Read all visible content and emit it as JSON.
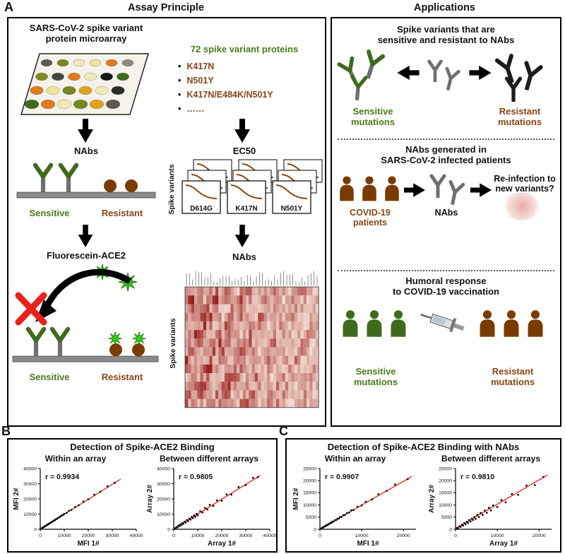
{
  "colors": {
    "green": "#4a7c19",
    "green_dark": "#3f6b1c",
    "brown": "#8b4513",
    "brown_dark": "#7a3b00",
    "gray_ab": "#6f6f6f",
    "black_ab": "#1c1c1c",
    "red": "#e8231c",
    "star_green": "#35c81e",
    "bar_gray": "#8a8a8a",
    "fit_red": "#e03127"
  },
  "panel_a": {
    "label": "A",
    "assay": {
      "title": "Assay Principle",
      "microarray_title_l1": "SARS-CoV-2 spike variant",
      "microarray_title_l2": "protein microarray",
      "microarray_dots": [
        [
          "#5a5a52",
          "#76881f",
          "#f2e9b6",
          "#efe39c",
          "#df7a1e",
          "#8d8d7e"
        ],
        [
          "#7e8d22",
          "#474747",
          "#df7a1e",
          "#f2e9b6",
          "#161616",
          "#3f6b1c"
        ],
        [
          "#df7a1e",
          "#efe39c",
          "#76881f",
          "#dfa31e",
          "#f2e9b6",
          "#2b2b2b"
        ],
        [
          "#3f6b1c",
          "#df7a1e",
          "#f2e9b6",
          "#76881f",
          "#dfa31e",
          "#5a5a52"
        ]
      ],
      "nabs_label": "NAbs",
      "sensitive_label": "Sensitive",
      "resistant_label": "Resistant",
      "fluorescein_label": "Fluorescein-ACE2",
      "sensitive_label2": "Sensitive",
      "resistant_label2": "Resistant",
      "variants_title": "72 spike variant proteins",
      "variant_bullets": [
        "K417N",
        "N501Y",
        "K417N/E484K/N501Y",
        "……"
      ],
      "ec50_label": "EC50",
      "spike_variants_label": "Spike variants",
      "curve_labels": [
        "D614G",
        "K417N",
        "N501Y"
      ],
      "nabs_label2": "NAbs",
      "heatmap_side_label": "Spike variants"
    },
    "applications": {
      "title": "Applications",
      "s1_title_l1": "Spike variants that are",
      "s1_title_l2": "sensitive and resistant to NAbs",
      "s1_sensitive_l1": "Sensitive",
      "s1_sensitive_l2": "mutations",
      "s1_resistant_l1": "Resistant",
      "s1_resistant_l2": "mutations",
      "s2_title_l1": "NAbs generated in",
      "s2_title_l2": "SARS-CoV-2 infected patients",
      "s2_patients_l1": "COVID-19",
      "s2_patients_l2": "patients",
      "s2_nabs_label": "NAbs",
      "s2_question": "Re-infection to new variants?",
      "s3_title_l1": "Humoral response",
      "s3_title_l2": "to COVID-19 vaccination",
      "s3_sensitive_l1": "Sensitive",
      "s3_sensitive_l2": "mutations",
      "s3_resistant_l1": "Resistant",
      "s3_resistant_l2": "mutations"
    }
  },
  "panel_b": {
    "label": "B",
    "title": "Detection of Spike-ACE2 Binding"
  },
  "panel_c": {
    "label": "C",
    "title": "Detection of Spike-ACE2 Binding with NAbs"
  },
  "chart_data": [
    {
      "type": "scatter",
      "panel": "B",
      "subtitle": "Within an array",
      "r_label": "r = 0.9934",
      "xlabel": "MFI 1#",
      "ylabel": "MFI 2#",
      "xlim": [
        0,
        40000
      ],
      "ylim": [
        0,
        40000
      ],
      "xticks": [
        0,
        10000,
        20000,
        30000,
        40000
      ],
      "yticks": [
        0,
        10000,
        20000,
        30000,
        40000
      ],
      "fit_line": [
        [
          0,
          0
        ],
        [
          33500,
          33000
        ]
      ],
      "points": [
        [
          300,
          400
        ],
        [
          600,
          500
        ],
        [
          900,
          1000
        ],
        [
          1200,
          1150
        ],
        [
          1500,
          1600
        ],
        [
          1800,
          1700
        ],
        [
          2100,
          2200
        ],
        [
          2400,
          2350
        ],
        [
          2700,
          2800
        ],
        [
          3000,
          2950
        ],
        [
          3300,
          3400
        ],
        [
          3600,
          3500
        ],
        [
          4000,
          4100
        ],
        [
          4400,
          4300
        ],
        [
          4800,
          4900
        ],
        [
          5200,
          5100
        ],
        [
          5600,
          5750
        ],
        [
          6000,
          5900
        ],
        [
          6500,
          6600
        ],
        [
          7000,
          6900
        ],
        [
          7500,
          7650
        ],
        [
          8000,
          7900
        ],
        [
          8500,
          8600
        ],
        [
          9000,
          9100
        ],
        [
          9500,
          9400
        ],
        [
          10000,
          10200
        ],
        [
          11000,
          10850
        ],
        [
          12000,
          12200
        ],
        [
          13000,
          12800
        ],
        [
          14500,
          14700
        ],
        [
          16000,
          15800
        ],
        [
          18000,
          18300
        ],
        [
          20000,
          19700
        ],
        [
          22500,
          22800
        ],
        [
          25000,
          24700
        ],
        [
          28000,
          28300
        ],
        [
          31000,
          30600
        ]
      ]
    },
    {
      "type": "scatter",
      "panel": "B",
      "subtitle": "Between different arrays",
      "r_label": "r = 0.9805",
      "xlabel": "Array 1#",
      "ylabel": "Array 2#",
      "xlim": [
        0,
        40000
      ],
      "ylim": [
        0,
        40000
      ],
      "xticks": [
        0,
        10000,
        20000,
        30000,
        40000
      ],
      "yticks": [
        0,
        10000,
        20000,
        30000,
        40000
      ],
      "fit_line": [
        [
          0,
          300
        ],
        [
          36000,
          35400
        ]
      ],
      "points": [
        [
          400,
          700
        ],
        [
          800,
          500
        ],
        [
          1200,
          1500
        ],
        [
          1600,
          1300
        ],
        [
          2000,
          2400
        ],
        [
          2400,
          2100
        ],
        [
          2800,
          3200
        ],
        [
          3200,
          2800
        ],
        [
          3600,
          4100
        ],
        [
          4000,
          3600
        ],
        [
          4500,
          5000
        ],
        [
          5000,
          4500
        ],
        [
          5500,
          6100
        ],
        [
          6000,
          5400
        ],
        [
          6500,
          7000
        ],
        [
          7000,
          6400
        ],
        [
          7500,
          8200
        ],
        [
          8000,
          7300
        ],
        [
          8500,
          9100
        ],
        [
          9000,
          8300
        ],
        [
          9500,
          10200
        ],
        [
          10000,
          9200
        ],
        [
          11000,
          11900
        ],
        [
          12000,
          11100
        ],
        [
          13000,
          14000
        ],
        [
          14000,
          13000
        ],
        [
          15000,
          16100
        ],
        [
          16500,
          15400
        ],
        [
          18000,
          19000
        ],
        [
          20000,
          18800
        ],
        [
          22000,
          23000
        ],
        [
          24000,
          22800
        ],
        [
          27000,
          27800
        ],
        [
          30000,
          29000
        ],
        [
          33000,
          33800
        ],
        [
          35000,
          34300
        ]
      ]
    },
    {
      "type": "scatter",
      "panel": "C",
      "subtitle": "Within an array",
      "r_label": "r = 0.9907",
      "xlabel": "MFI 1#",
      "ylabel": "MFI 2#",
      "xlim": [
        0,
        23000
      ],
      "ylim": [
        0,
        25000
      ],
      "xticks": [
        0,
        10000,
        20000
      ],
      "yticks": [
        0,
        5000,
        10000,
        15000,
        20000,
        25000
      ],
      "fit_line": [
        [
          0,
          100
        ],
        [
          22000,
          21700
        ]
      ],
      "points": [
        [
          200,
          300
        ],
        [
          400,
          350
        ],
        [
          600,
          700
        ],
        [
          800,
          750
        ],
        [
          1000,
          1100
        ],
        [
          1200,
          1150
        ],
        [
          1400,
          1500
        ],
        [
          1600,
          1550
        ],
        [
          1800,
          1900
        ],
        [
          2000,
          1950
        ],
        [
          2200,
          2300
        ],
        [
          2400,
          2350
        ],
        [
          2600,
          2750
        ],
        [
          2800,
          2700
        ],
        [
          3000,
          3150
        ],
        [
          3300,
          3200
        ],
        [
          3600,
          3750
        ],
        [
          3900,
          3800
        ],
        [
          4200,
          4350
        ],
        [
          4500,
          4400
        ],
        [
          4800,
          5000
        ],
        [
          5200,
          5100
        ],
        [
          5600,
          5800
        ],
        [
          6000,
          5900
        ],
        [
          6500,
          6700
        ],
        [
          7000,
          6900
        ],
        [
          7500,
          7800
        ],
        [
          8000,
          7900
        ],
        [
          9000,
          9300
        ],
        [
          10000,
          9800
        ],
        [
          11000,
          11300
        ],
        [
          12500,
          12300
        ],
        [
          14000,
          14400
        ],
        [
          16000,
          15800
        ],
        [
          18000,
          18400
        ],
        [
          21000,
          20600
        ]
      ]
    },
    {
      "type": "scatter",
      "panel": "C",
      "subtitle": "Between different arrays",
      "r_label": "r = 0.9810",
      "xlabel": "Array 1#",
      "ylabel": "Array 2#",
      "xlim": [
        0,
        23000
      ],
      "ylim": [
        0,
        25000
      ],
      "xticks": [
        0,
        10000,
        20000
      ],
      "yticks": [
        0,
        5000,
        10000,
        15000,
        20000,
        25000
      ],
      "fit_line": [
        [
          0,
          300
        ],
        [
          22000,
          22300
        ]
      ],
      "points": [
        [
          300,
          500
        ],
        [
          600,
          400
        ],
        [
          900,
          1200
        ],
        [
          1200,
          1000
        ],
        [
          1500,
          1800
        ],
        [
          1800,
          1500
        ],
        [
          2100,
          2500
        ],
        [
          2400,
          2100
        ],
        [
          2700,
          3100
        ],
        [
          3000,
          2600
        ],
        [
          3300,
          3800
        ],
        [
          3600,
          3200
        ],
        [
          3900,
          4400
        ],
        [
          4200,
          3800
        ],
        [
          4500,
          5100
        ],
        [
          4800,
          4300
        ],
        [
          5200,
          5900
        ],
        [
          5600,
          5000
        ],
        [
          6000,
          6700
        ],
        [
          6500,
          5900
        ],
        [
          7000,
          7700
        ],
        [
          7500,
          6800
        ],
        [
          8000,
          8800
        ],
        [
          8500,
          7800
        ],
        [
          9000,
          9800
        ],
        [
          10000,
          9200
        ],
        [
          11000,
          12000
        ],
        [
          12000,
          11100
        ],
        [
          13500,
          14500
        ],
        [
          15000,
          14200
        ],
        [
          17000,
          18000
        ],
        [
          19000,
          18200
        ],
        [
          21000,
          21500
        ]
      ]
    }
  ]
}
